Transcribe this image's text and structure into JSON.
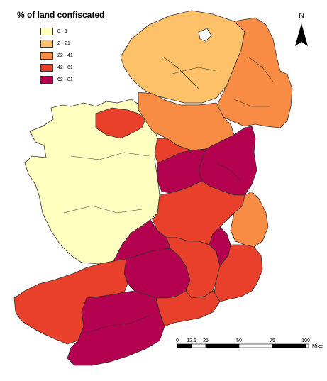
{
  "legend": {
    "title": "% of land confiscated",
    "classes": [
      {
        "label": "0 - 1",
        "color": "#ffffc0"
      },
      {
        "label": "2 - 21",
        "color": "#fdc16a"
      },
      {
        "label": "22 - 41",
        "color": "#f98c45"
      },
      {
        "label": "42 - 61",
        "color": "#e8402b"
      },
      {
        "label": "62 - 81",
        "color": "#b3004f"
      }
    ]
  },
  "north_arrow": {
    "label": "N"
  },
  "scale_bar": {
    "ticks": [
      "0",
      "12.5",
      "25",
      "50",
      "75",
      "100"
    ],
    "unit": "Miles"
  },
  "regions": [
    {
      "name": "connacht",
      "class": "0 - 1"
    },
    {
      "name": "ulster-northwest",
      "class": "2 - 21"
    },
    {
      "name": "ulster-northeast",
      "class": "22 - 41"
    },
    {
      "name": "ulster-border",
      "class": "22 - 41"
    },
    {
      "name": "leitrim",
      "class": "42 - 61"
    },
    {
      "name": "louth-meath",
      "class": "62 - 81"
    },
    {
      "name": "midlands-central",
      "class": "62 - 81"
    },
    {
      "name": "midlands",
      "class": "42 - 61"
    },
    {
      "name": "wicklow",
      "class": "22 - 41"
    },
    {
      "name": "clare-limerick-north",
      "class": "62 - 81"
    },
    {
      "name": "limerick-tipperary",
      "class": "62 - 81"
    },
    {
      "name": "kerry",
      "class": "42 - 61"
    },
    {
      "name": "cork",
      "class": "62 - 81"
    },
    {
      "name": "waterford",
      "class": "42 - 61"
    },
    {
      "name": "wexford",
      "class": "42 - 61"
    }
  ]
}
